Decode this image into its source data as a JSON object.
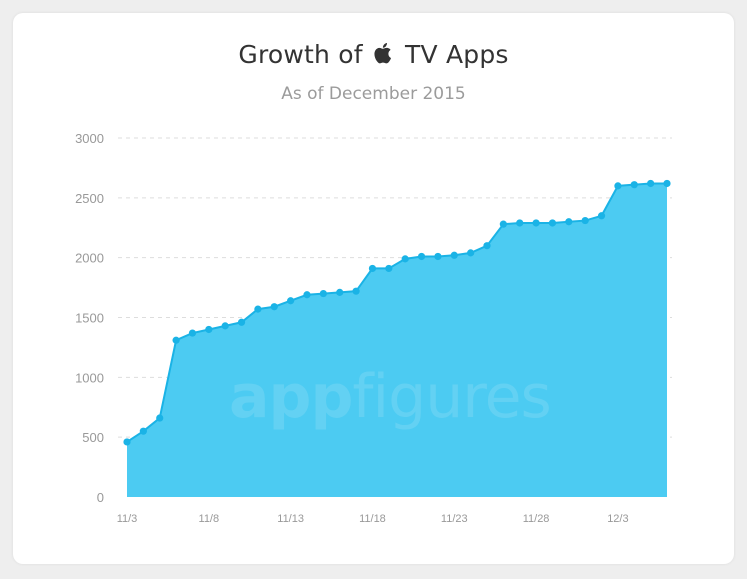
{
  "chart_data": {
    "type": "area",
    "title_prefix": "Growth of",
    "title_suffix": "TV Apps",
    "title_icon": "apple-logo-icon",
    "subtitle": "As of December 2015",
    "x_tick_labels": [
      "11/3",
      "11/8",
      "11/13",
      "11/18",
      "11/23",
      "11/28",
      "12/3"
    ],
    "y_tick_labels": [
      "0",
      "500",
      "1000",
      "1500",
      "2000",
      "2500",
      "3000"
    ],
    "ylim": [
      0,
      3000
    ],
    "grid": true,
    "series": [
      {
        "x": [
          "11/3",
          "11/4",
          "11/5",
          "11/6",
          "11/7",
          "11/8",
          "11/9",
          "11/10",
          "11/11",
          "11/12",
          "11/13",
          "11/14",
          "11/15",
          "11/16",
          "11/17",
          "11/18",
          "11/19",
          "11/20",
          "11/21",
          "11/22",
          "11/23",
          "11/24",
          "11/25",
          "11/26",
          "11/27",
          "11/28",
          "11/29",
          "11/30",
          "12/1",
          "12/2",
          "12/3",
          "12/4",
          "12/5",
          "12/6"
        ],
        "values": [
          460,
          550,
          660,
          1310,
          1370,
          1400,
          1430,
          1460,
          1570,
          1590,
          1640,
          1690,
          1700,
          1710,
          1720,
          1910,
          1910,
          1990,
          2010,
          2010,
          2020,
          2040,
          2100,
          2280,
          2290,
          2290,
          2290,
          2300,
          2310,
          2350,
          2600,
          2610,
          2620,
          2620
        ]
      }
    ],
    "colors": {
      "fill": "#4ccbf2",
      "line": "#1ab3e6",
      "point": "#1ab3e6",
      "grid": "#dddddd",
      "tick_text": "#999999"
    },
    "watermark_left": "app",
    "watermark_right": "figures"
  }
}
